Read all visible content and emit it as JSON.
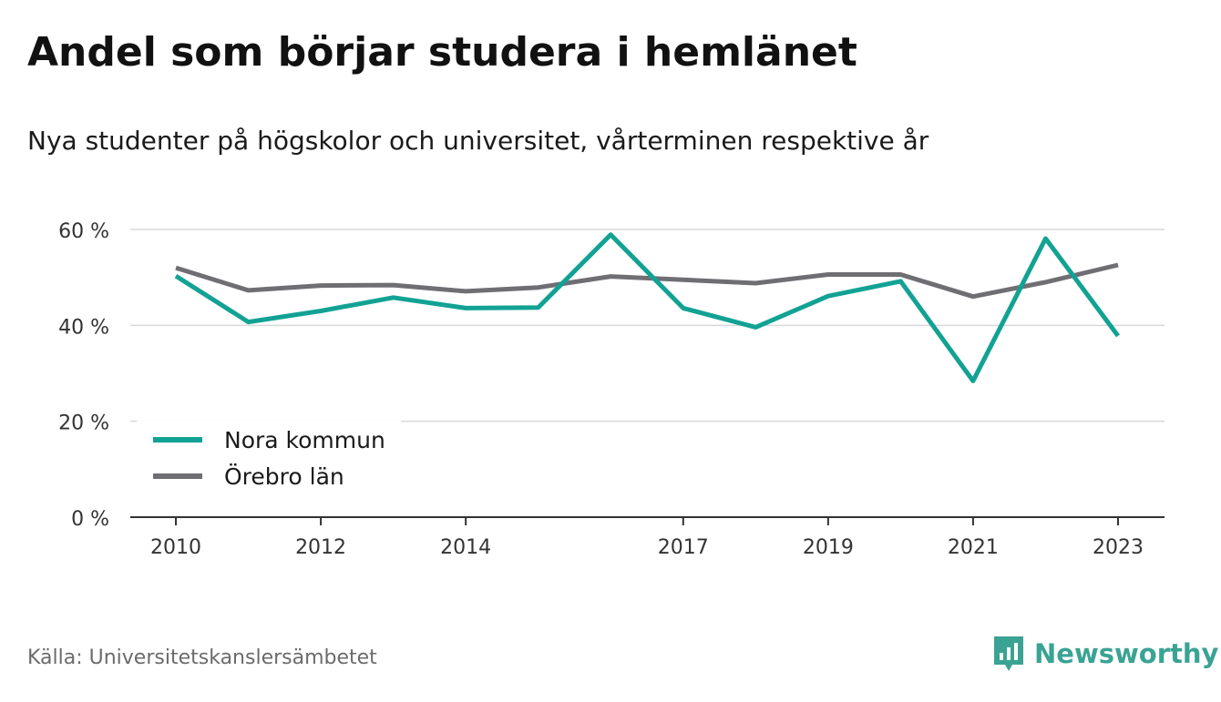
{
  "title": "Andel som börjar studera i hemlänet",
  "subtitle": "Nya studenter på högskolor och universitet, vårterminen respektive år",
  "source": "Källa: Universitetskanslersämbetet",
  "brand": "Newsworthy",
  "colors": {
    "nora": "#12a294",
    "orebro": "#6f6e73",
    "grid": "#d9d9d9",
    "axis": "#333333",
    "brand": "#3aa394"
  },
  "chart_data": {
    "type": "line",
    "x": [
      2010,
      2011,
      2012,
      2013,
      2014,
      2015,
      2016,
      2017,
      2018,
      2019,
      2020,
      2021,
      2022,
      2023
    ],
    "x_tick_labels": [
      "2010",
      "2012",
      "2014",
      "2017",
      "2019",
      "2021",
      "2023"
    ],
    "y_ticks": [
      0,
      20,
      40,
      60
    ],
    "y_tick_labels": [
      "0 %",
      "20 %",
      "40 %",
      "60 %"
    ],
    "ylim": [
      0,
      60
    ],
    "grid": true,
    "legend_position": "bottom-left",
    "series": [
      {
        "name": "Nora kommun",
        "color": "#12a294",
        "values": [
          50.3,
          40.7,
          43.0,
          45.8,
          43.6,
          43.7,
          58.9,
          43.6,
          39.6,
          46.1,
          49.2,
          28.4,
          58.1,
          37.8
        ]
      },
      {
        "name": "Örebro län",
        "color": "#6f6e73",
        "values": [
          52.0,
          47.3,
          48.3,
          48.4,
          47.1,
          47.9,
          50.2,
          49.5,
          48.8,
          50.6,
          50.6,
          46.0,
          49.0,
          52.6
        ]
      }
    ]
  }
}
